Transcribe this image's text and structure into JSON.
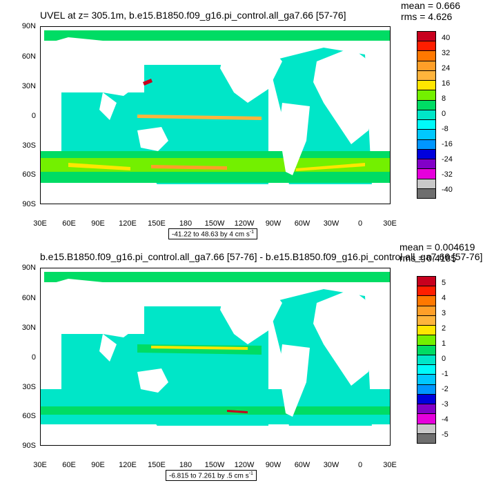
{
  "panels": [
    {
      "title": "UVEL at z= 305.1m, b.e15.B1850.f09_g16.pi_control.all_ga7.66 [57-76]",
      "mean": "mean = 0.666",
      "rms": "rms = 4.626",
      "range_text": "-41.22 to 48.63 by 4 cm s",
      "range_unit_exp": "-1",
      "colorbar_labels": [
        "40",
        "32",
        "24",
        "16",
        "8",
        "0",
        "-8",
        "-16",
        "-24",
        "-32",
        "-40"
      ]
    },
    {
      "title": "b.e15.B1850.f09_g16.pi_control.all_ga7.66 [57-76] - b.e15.B1850.f09_g16.pi_control.all_ga7.66 [57-76]",
      "mean": "mean = 0.004619",
      "rms": "rms = 0.4185",
      "range_text": "-6.815 to 7.261 by .5 cm s",
      "range_unit_exp": "-1",
      "colorbar_labels": [
        "5",
        "4",
        "3",
        "2",
        "1",
        "0",
        "-1",
        "-2",
        "-3",
        "-4",
        "-5"
      ]
    }
  ],
  "lat_labels": [
    "90N",
    "60N",
    "30N",
    "0",
    "30S",
    "60S",
    "90S"
  ],
  "lon_labels": [
    "30E",
    "60E",
    "90E",
    "120E",
    "150E",
    "180",
    "150W",
    "120W",
    "90W",
    "60W",
    "30W",
    "0",
    "30E"
  ],
  "colorbar_colors": [
    "#c8001e",
    "#ff1e00",
    "#ff7800",
    "#ff9f28",
    "#ffb43c",
    "#ffe600",
    "#73f000",
    "#00dc64",
    "#00e6c8",
    "#00fafa",
    "#00c8ff",
    "#0096ff",
    "#0000dc",
    "#8200c8",
    "#e600dc",
    "#c8c8c8",
    "#6e6e6e"
  ],
  "colors": {
    "ocean_base": "#00dc64",
    "ocean_mid": "#00e6c8",
    "land": "#ffffff",
    "warm_band": "#73f000",
    "hot": "#ffe600",
    "hotter": "#ff9f28",
    "hottest": "#c8001e"
  }
}
